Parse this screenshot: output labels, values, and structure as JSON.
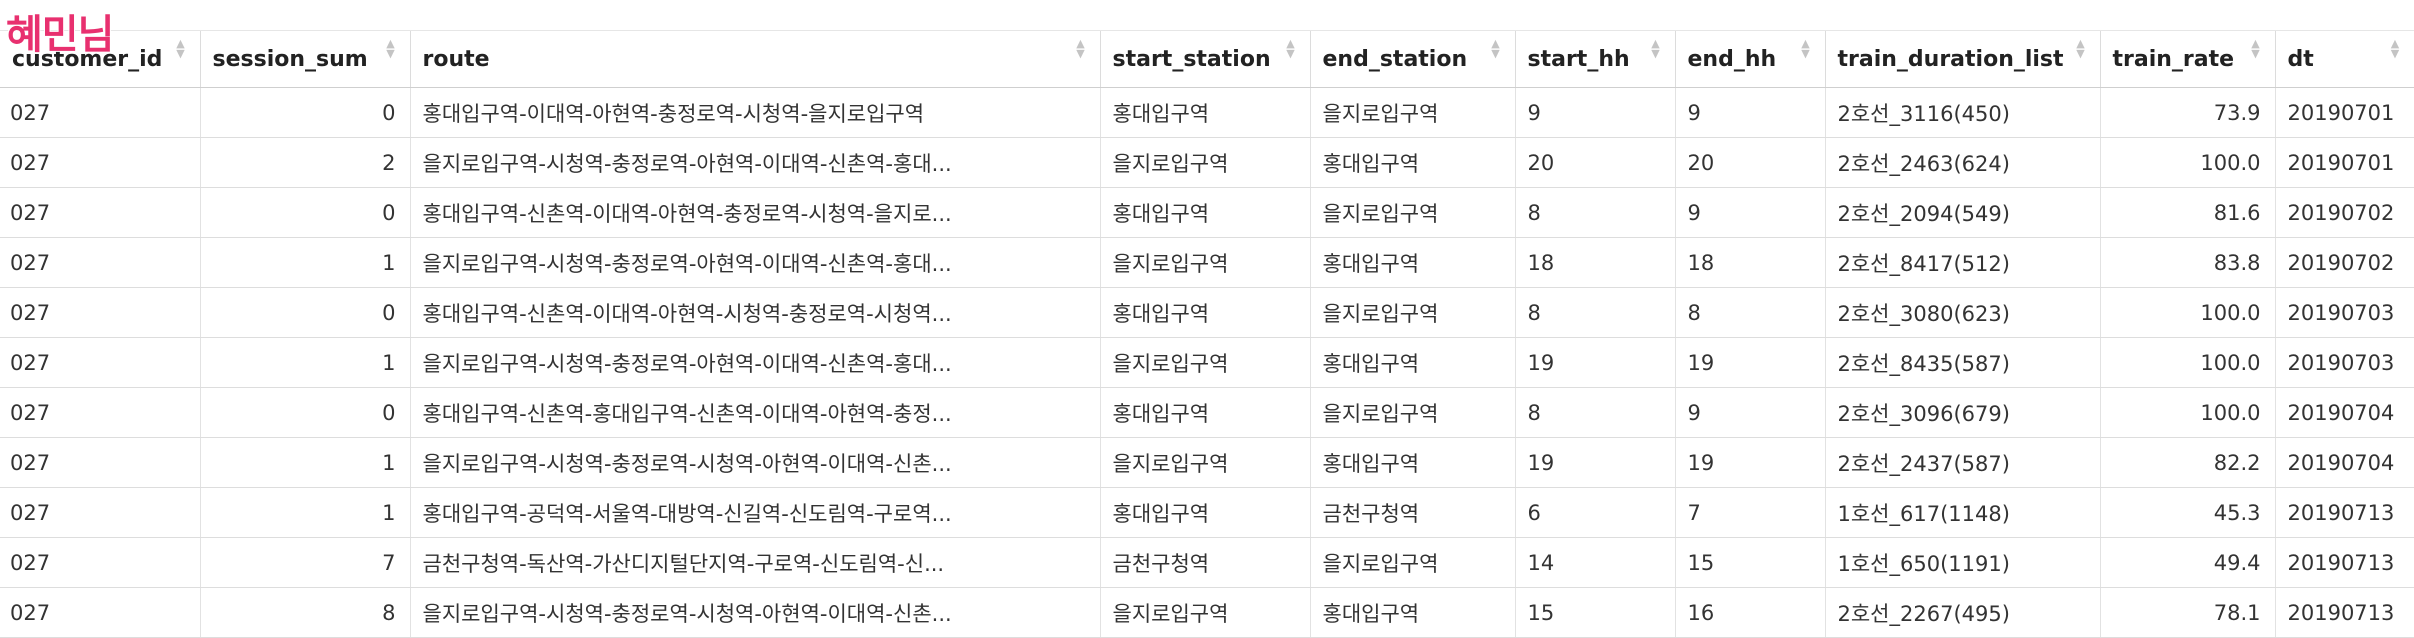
{
  "watermark": "혜민님",
  "columns": [
    {
      "label": "customer_id"
    },
    {
      "label": "session_sum"
    },
    {
      "label": "route"
    },
    {
      "label": "start_station"
    },
    {
      "label": "end_station"
    },
    {
      "label": "start_hh"
    },
    {
      "label": "end_hh"
    },
    {
      "label": "train_duration_list"
    },
    {
      "label": "train_rate"
    },
    {
      "label": "dt"
    }
  ],
  "rows": [
    [
      "027",
      "0",
      "홍대입구역-이대역-아현역-충정로역-시청역-을지로입구역",
      "홍대입구역",
      "을지로입구역",
      "9",
      "9",
      "2호선_3116(450)",
      "73.9",
      "20190701"
    ],
    [
      "027",
      "2",
      "을지로입구역-시청역-충정로역-아현역-이대역-신촌역-홍대...",
      "을지로입구역",
      "홍대입구역",
      "20",
      "20",
      "2호선_2463(624)",
      "100.0",
      "20190701"
    ],
    [
      "027",
      "0",
      "홍대입구역-신촌역-이대역-아현역-충정로역-시청역-을지로...",
      "홍대입구역",
      "을지로입구역",
      "8",
      "9",
      "2호선_2094(549)",
      "81.6",
      "20190702"
    ],
    [
      "027",
      "1",
      "을지로입구역-시청역-충정로역-아현역-이대역-신촌역-홍대...",
      "을지로입구역",
      "홍대입구역",
      "18",
      "18",
      "2호선_8417(512)",
      "83.8",
      "20190702"
    ],
    [
      "027",
      "0",
      "홍대입구역-신촌역-이대역-아현역-시청역-충정로역-시청역...",
      "홍대입구역",
      "을지로입구역",
      "8",
      "8",
      "2호선_3080(623)",
      "100.0",
      "20190703"
    ],
    [
      "027",
      "1",
      "을지로입구역-시청역-충정로역-아현역-이대역-신촌역-홍대...",
      "을지로입구역",
      "홍대입구역",
      "19",
      "19",
      "2호선_8435(587)",
      "100.0",
      "20190703"
    ],
    [
      "027",
      "0",
      "홍대입구역-신촌역-홍대입구역-신촌역-이대역-아현역-충정...",
      "홍대입구역",
      "을지로입구역",
      "8",
      "9",
      "2호선_3096(679)",
      "100.0",
      "20190704"
    ],
    [
      "027",
      "1",
      "을지로입구역-시청역-충정로역-시청역-아현역-이대역-신촌...",
      "을지로입구역",
      "홍대입구역",
      "19",
      "19",
      "2호선_2437(587)",
      "82.2",
      "20190704"
    ],
    [
      "027",
      "1",
      "홍대입구역-공덕역-서울역-대방역-신길역-신도림역-구로역...",
      "홍대입구역",
      "금천구청역",
      "6",
      "7",
      "1호선_617(1148)",
      "45.3",
      "20190713"
    ],
    [
      "027",
      "7",
      "금천구청역-독산역-가산디지털단지역-구로역-신도림역-신...",
      "금천구청역",
      "을지로입구역",
      "14",
      "15",
      "1호선_650(1191)",
      "49.4",
      "20190713"
    ],
    [
      "027",
      "8",
      "을지로입구역-시청역-충정로역-시청역-아현역-이대역-신촌...",
      "을지로입구역",
      "홍대입구역",
      "15",
      "16",
      "2호선_2267(495)",
      "78.1",
      "20190713"
    ]
  ],
  "numeric_columns": [
    1,
    8
  ],
  "colors": {
    "watermark": "#e8306f",
    "header_border": "#cfcfcf",
    "row_border": "#dddddd"
  },
  "icons": {
    "sort": "sort-arrows-icon"
  }
}
